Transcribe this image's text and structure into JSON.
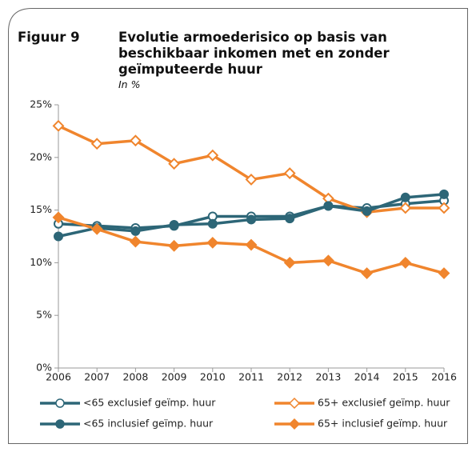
{
  "chart_data": {
    "type": "line",
    "label": "Figuur 9",
    "title": "Evolutie armoederisico op basis van beschikbaar inkomen met en zonder geïmputeerde huur",
    "subtitle": "In %",
    "x": [
      2006,
      2007,
      2008,
      2009,
      2010,
      2011,
      2012,
      2013,
      2014,
      2015,
      2016
    ],
    "xlim": [
      2006,
      2016
    ],
    "xticks": [
      2006,
      2007,
      2008,
      2009,
      2010,
      2011,
      2012,
      2013,
      2014,
      2015,
      2016
    ],
    "ylim": [
      0,
      25
    ],
    "yticks": [
      {
        "value": 0,
        "label": "0%"
      },
      {
        "value": 5,
        "label": "5%"
      },
      {
        "value": 10,
        "label": "10%"
      },
      {
        "value": 15,
        "label": "15%"
      },
      {
        "value": 20,
        "label": "20%"
      },
      {
        "value": 25,
        "label": "25%"
      }
    ],
    "series": [
      {
        "name": "<65 exclusief geïmp. huur",
        "color": "#2d6677",
        "marker": "circle",
        "filled": false,
        "values": [
          13.7,
          13.5,
          13.3,
          13.5,
          14.4,
          14.4,
          14.4,
          15.4,
          15.2,
          15.6,
          15.9
        ]
      },
      {
        "name": "65+ exclusief geïmp. huur",
        "color": "#f0852d",
        "marker": "diamond",
        "filled": false,
        "values": [
          23.0,
          21.3,
          21.6,
          19.4,
          20.2,
          17.9,
          18.5,
          16.1,
          14.8,
          15.2,
          15.2
        ]
      },
      {
        "name": "<65 inclusief geïmp. huur",
        "color": "#2d6677",
        "marker": "circle",
        "filled": true,
        "values": [
          12.5,
          13.3,
          13.0,
          13.6,
          13.7,
          14.1,
          14.2,
          15.4,
          14.9,
          16.2,
          16.5
        ]
      },
      {
        "name": "65+ inclusief geïmp. huur",
        "color": "#f0852d",
        "marker": "diamond",
        "filled": true,
        "values": [
          14.3,
          13.2,
          12.0,
          11.6,
          11.9,
          11.7,
          10.0,
          10.2,
          9.0,
          10.0,
          9.0
        ]
      }
    ]
  }
}
